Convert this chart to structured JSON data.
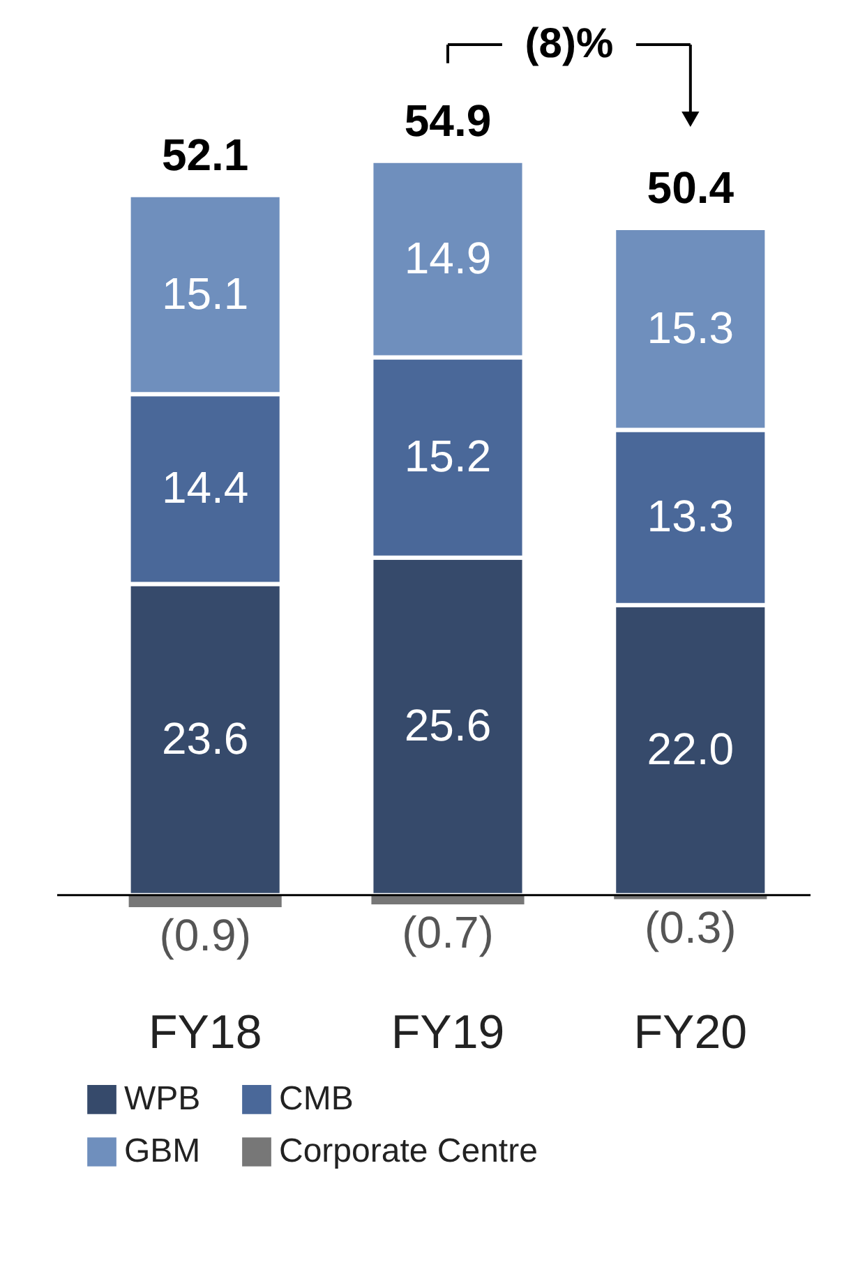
{
  "chart_data": {
    "type": "bar",
    "stacked": true,
    "categories": [
      "FY18",
      "FY19",
      "FY20"
    ],
    "series": [
      {
        "name": "WPB",
        "color": "#364a6b",
        "values": [
          23.6,
          25.6,
          22.0
        ],
        "value_labels": [
          "23.6",
          "25.6",
          "22.0"
        ]
      },
      {
        "name": "CMB",
        "color": "#4a6899",
        "values": [
          14.4,
          15.2,
          13.3
        ],
        "value_labels": [
          "14.4",
          "15.2",
          "13.3"
        ]
      },
      {
        "name": "GBM",
        "color": "#6f8fbd",
        "values": [
          15.1,
          14.9,
          15.3
        ],
        "value_labels": [
          "15.1",
          "14.9",
          "15.3"
        ]
      },
      {
        "name": "Corporate Centre",
        "color": "#777777",
        "values": [
          -0.9,
          -0.7,
          -0.3
        ],
        "value_labels": [
          "(0.9)",
          "(0.7)",
          "(0.3)"
        ]
      }
    ],
    "totals": [
      "52.1",
      "54.9",
      "50.4"
    ],
    "annotations": [
      "(8)%"
    ],
    "legend": "bottom",
    "grid": false
  }
}
